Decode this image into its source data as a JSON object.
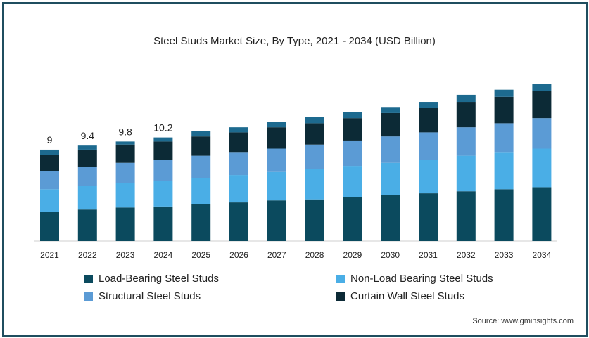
{
  "chart_data": {
    "type": "bar",
    "stacked": true,
    "title": "Steel Studs Market Size, By Type, 2021 - 2034 (USD Billion)",
    "categories": [
      "2021",
      "2022",
      "2023",
      "2024",
      "2025",
      "2026",
      "2027",
      "2028",
      "2029",
      "2030",
      "2031",
      "2032",
      "2033",
      "2034"
    ],
    "series": [
      {
        "name": "Load-Bearing Steel Studs",
        "color": "#0b4a5e",
        "values": [
          2.9,
          3.1,
          3.3,
          3.4,
          3.6,
          3.8,
          4.0,
          4.1,
          4.3,
          4.5,
          4.7,
          4.9,
          5.1,
          5.3
        ]
      },
      {
        "name": "Non-Load Bearing Steel Studs",
        "color": "#4aaee6",
        "values": [
          2.2,
          2.3,
          2.4,
          2.5,
          2.6,
          2.7,
          2.8,
          3.0,
          3.1,
          3.2,
          3.3,
          3.5,
          3.6,
          3.8
        ]
      },
      {
        "name": "Structural Steel Studs",
        "color": "#5b9bd5",
        "values": [
          1.8,
          1.9,
          2.0,
          2.1,
          2.2,
          2.2,
          2.3,
          2.4,
          2.5,
          2.6,
          2.7,
          2.8,
          2.9,
          3.0
        ]
      },
      {
        "name": "Curtain Wall Steel Studs",
        "color": "#0c2a36",
        "values": [
          1.6,
          1.7,
          1.8,
          1.8,
          1.9,
          2.0,
          2.1,
          2.1,
          2.2,
          2.3,
          2.4,
          2.5,
          2.6,
          2.7
        ]
      },
      {
        "name": "",
        "color": "#1d6a8f",
        "values": [
          0.5,
          0.4,
          0.3,
          0.4,
          0.5,
          0.5,
          0.5,
          0.6,
          0.6,
          0.6,
          0.6,
          0.7,
          0.7,
          0.7
        ]
      }
    ],
    "data_labels": [
      "9",
      "9.4",
      "9.8",
      "10.2",
      "",
      "",
      "",
      "",
      "",
      "",
      "",
      "",
      "",
      ""
    ],
    "ylim": [
      0,
      20
    ],
    "legend_placement": "bottom",
    "grid": false
  },
  "source_text": "Source: www.gminsights.com"
}
